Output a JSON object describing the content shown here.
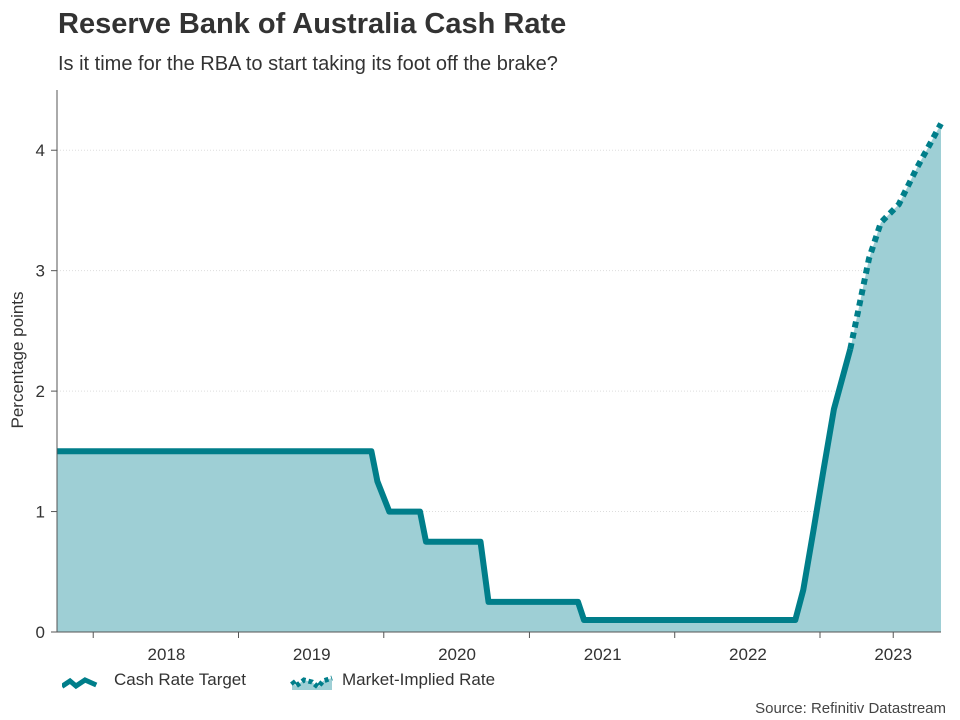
{
  "title": "Reserve Bank of Australia Cash Rate",
  "subtitle": "Is it time for the RBA to start taking its foot off the brake?",
  "source": "Source: Refinitiv Datastream",
  "colors": {
    "line": "#007e8a",
    "area": "#9ecfd5",
    "grid": "#dddddd",
    "text": "#333333"
  },
  "chart_data": {
    "type": "area",
    "ylabel": "Percentage points",
    "xlabel": "",
    "ylim": [
      0,
      4.5
    ],
    "xlim": [
      "2017-04-01",
      "2023-05-01"
    ],
    "yticks": [
      0,
      1,
      2,
      3,
      4
    ],
    "xtick_labels": [
      {
        "label": "2018",
        "date": "2018-01-01"
      },
      {
        "label": "2019",
        "date": "2019-01-01"
      },
      {
        "label": "2020",
        "date": "2020-01-01"
      },
      {
        "label": "2021",
        "date": "2021-01-01"
      },
      {
        "label": "2022",
        "date": "2022-01-01"
      },
      {
        "label": "2023",
        "date": "2023-01-01"
      }
    ],
    "xtick_marks": [
      "2017-07-01",
      "2018-07-01",
      "2019-07-01",
      "2020-07-01",
      "2021-07-01",
      "2022-07-01",
      "2023-01-01"
    ],
    "grid": true,
    "legend_position": "bottom-left",
    "series": [
      {
        "name": "Cash Rate Target",
        "style": "solid",
        "points": [
          [
            "2017-04-01",
            1.5
          ],
          [
            "2019-05-31",
            1.5
          ],
          [
            "2019-06-15",
            1.25
          ],
          [
            "2019-07-15",
            1.0
          ],
          [
            "2019-09-30",
            1.0
          ],
          [
            "2019-10-15",
            0.75
          ],
          [
            "2020-02-29",
            0.75
          ],
          [
            "2020-03-20",
            0.25
          ],
          [
            "2020-10-31",
            0.25
          ],
          [
            "2020-11-15",
            0.1
          ],
          [
            "2022-04-30",
            0.1
          ],
          [
            "2022-05-20",
            0.35
          ],
          [
            "2022-06-15",
            0.85
          ],
          [
            "2022-07-10",
            1.35
          ],
          [
            "2022-08-05",
            1.85
          ],
          [
            "2022-09-15",
            2.35
          ]
        ]
      },
      {
        "name": "Market-Implied Rate",
        "style": "dotted",
        "points": [
          [
            "2022-09-15",
            2.35
          ],
          [
            "2022-11-01",
            3.1
          ],
          [
            "2022-12-01",
            3.4
          ],
          [
            "2023-01-15",
            3.55
          ],
          [
            "2023-03-01",
            3.85
          ],
          [
            "2023-05-01",
            4.22
          ]
        ]
      }
    ]
  }
}
